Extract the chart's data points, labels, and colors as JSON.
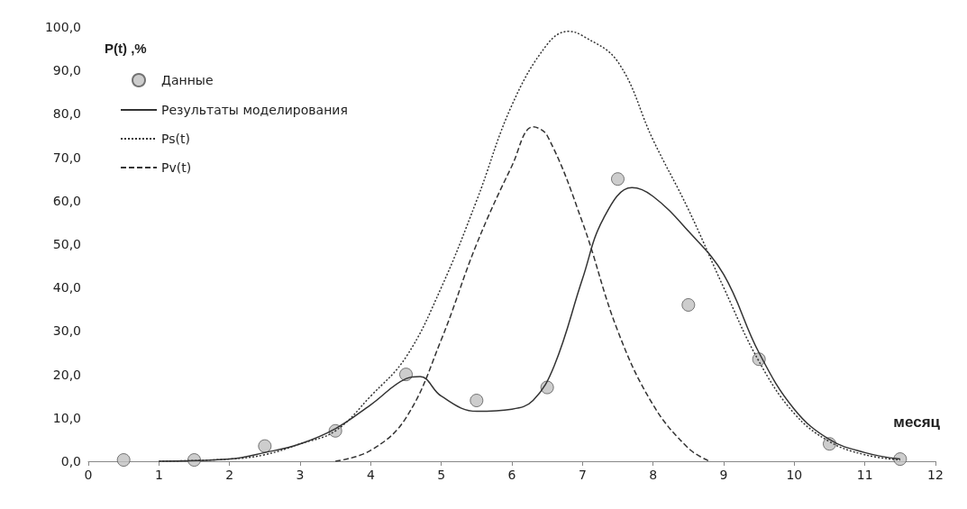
{
  "chart_data": {
    "type": "line",
    "ylabel": "P(t) ,%",
    "xlabel": "месяц",
    "xlim": [
      0,
      12
    ],
    "xticks": [
      0,
      1,
      2,
      3,
      4,
      5,
      6,
      7,
      8,
      9,
      10,
      11,
      12
    ],
    "ylim": [
      0,
      100
    ],
    "yticks": [
      {
        "value": 0,
        "label": "0,0"
      },
      {
        "value": 10,
        "label": "10,0"
      },
      {
        "value": 20,
        "label": "20,0"
      },
      {
        "value": 30,
        "label": "30,0"
      },
      {
        "value": 40,
        "label": "40,0"
      },
      {
        "value": 50,
        "label": "50,0"
      },
      {
        "value": 60,
        "label": "60,0"
      },
      {
        "value": 70,
        "label": "70,0"
      },
      {
        "value": 80,
        "label": "80,0"
      },
      {
        "value": 90,
        "label": "90,0"
      },
      {
        "value": 100,
        "label": "100,0"
      }
    ],
    "grid": false,
    "legend": "top left",
    "series": [
      {
        "name": "Данные",
        "type": "scatter",
        "marker": "circle",
        "color": "#c0c0c0",
        "x": [
          0.5,
          1.5,
          2.5,
          3.5,
          4.5,
          5.5,
          6.5,
          7.5,
          8.5,
          9.5,
          10.5,
          11.5
        ],
        "values": [
          0.3,
          0.3,
          3.5,
          7,
          20,
          14,
          17,
          65,
          36,
          23.5,
          4,
          0.5
        ]
      },
      {
        "name": "Результаты моделирования",
        "marker": "none",
        "line_style": "solid",
        "color": "#333333",
        "x": [
          1,
          2,
          2.5,
          3,
          3.5,
          4,
          4.5,
          4.7,
          5,
          5.5,
          6,
          6.3,
          6.6,
          7,
          7.3,
          7.7,
          8,
          8.5,
          9,
          9.5,
          10,
          10.5,
          11,
          11.5
        ],
        "values": [
          0,
          0.5,
          2,
          4,
          7.5,
          13,
          19,
          19.5,
          15,
          11.5,
          12,
          14,
          22,
          42,
          56,
          63,
          61,
          53,
          43,
          25,
          12,
          5,
          2,
          0.5
        ]
      },
      {
        "name": "Ps(t)",
        "marker": "none",
        "line_style": "dotted",
        "color": "#333333",
        "x": [
          1,
          2,
          2.5,
          3,
          3.5,
          4,
          4.5,
          5,
          5.5,
          6,
          6.5,
          6.8,
          7,
          7.5,
          8,
          8.5,
          9,
          9.5,
          10,
          10.5,
          11,
          11.5
        ],
        "values": [
          0,
          0.5,
          1.5,
          4,
          7,
          15,
          24,
          40,
          60,
          82,
          96,
          99,
          98,
          92,
          74,
          58,
          40,
          23,
          11,
          4.5,
          1.5,
          0.3
        ]
      },
      {
        "name": "Pv(t)",
        "marker": "none",
        "line_style": "dashed",
        "color": "#333333",
        "x": [
          3.5,
          4,
          4.5,
          5,
          5.5,
          6,
          6.3,
          6.5,
          7,
          7.5,
          8,
          8.5,
          8.8
        ],
        "values": [
          0,
          2.5,
          10,
          28,
          50,
          68,
          77,
          75,
          55,
          30,
          13,
          3,
          0
        ]
      }
    ]
  }
}
